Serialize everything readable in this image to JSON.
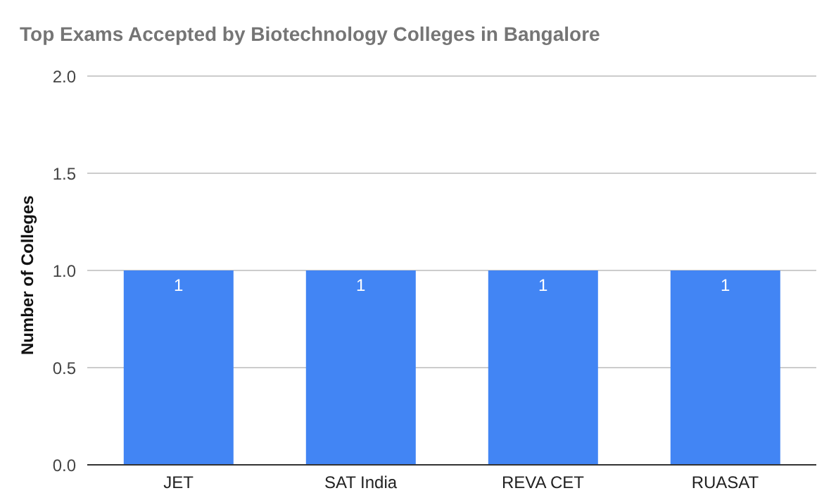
{
  "chart_data": {
    "type": "bar",
    "title": "Top Exams Accepted by Biotechnology Colleges in Bangalore",
    "ylabel": "Number of Colleges",
    "categories": [
      "JET",
      "SAT India",
      "REVA CET",
      "RUASAT"
    ],
    "values": [
      1,
      1,
      1,
      1
    ],
    "color": "#4285f4",
    "ylim": [
      0,
      2
    ],
    "yticks": [
      {
        "value": 0,
        "label": "0.0"
      },
      {
        "value": 0.5,
        "label": "0.5"
      },
      {
        "value": 1,
        "label": "1.0"
      },
      {
        "value": 1.5,
        "label": "1.5"
      },
      {
        "value": 2,
        "label": "2.0"
      }
    ],
    "grid": "y",
    "data_labels": true
  }
}
